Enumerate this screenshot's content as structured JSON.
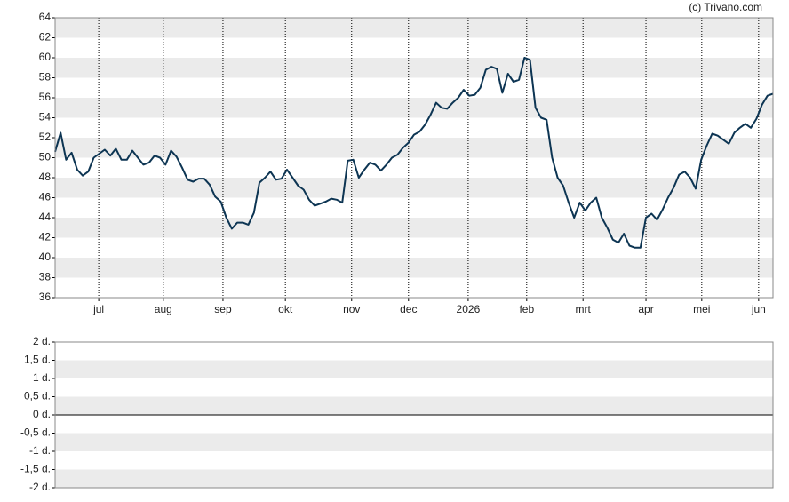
{
  "attribution": "(c) Trivano.com",
  "chart_data": [
    {
      "type": "line",
      "ylim": [
        36,
        64
      ],
      "yticks": [
        36,
        38,
        40,
        42,
        44,
        46,
        48,
        50,
        52,
        54,
        56,
        58,
        60,
        62,
        64
      ],
      "xlim": [
        0,
        130
      ],
      "xticks": [
        {
          "value": 7.9,
          "label": "jul"
        },
        {
          "value": 19.6,
          "label": "aug"
        },
        {
          "value": 30.4,
          "label": "sep"
        },
        {
          "value": 41.7,
          "label": "okt"
        },
        {
          "value": 53.7,
          "label": "nov"
        },
        {
          "value": 64.0,
          "label": "dec"
        },
        {
          "value": 74.8,
          "label": "2026"
        },
        {
          "value": 85.4,
          "label": "feb"
        },
        {
          "value": 95.6,
          "label": "mrt"
        },
        {
          "value": 107.0,
          "label": "apr"
        },
        {
          "value": 117.1,
          "label": "mei"
        },
        {
          "value": 127.4,
          "label": "jun"
        }
      ],
      "grid": true,
      "series": [
        {
          "color": "#0d3553",
          "values": [
            50.6,
            52.5,
            49.8,
            50.5,
            48.8,
            48.2,
            48.6,
            50.0,
            50.4,
            50.8,
            50.2,
            50.9,
            49.8,
            49.8,
            50.7,
            50.0,
            49.3,
            49.5,
            50.2,
            50.0,
            49.3,
            50.7,
            50.1,
            49.0,
            47.8,
            47.6,
            47.9,
            47.9,
            47.3,
            46.1,
            45.6,
            44.0,
            42.9,
            43.5,
            43.5,
            43.3,
            44.5,
            47.5,
            48.0,
            48.6,
            47.8,
            47.9,
            48.8,
            48.0,
            47.2,
            46.8,
            45.8,
            45.2,
            45.4,
            45.6,
            45.9,
            45.8,
            45.5,
            49.7,
            49.8,
            48.0,
            48.8,
            49.5,
            49.3,
            48.7,
            49.3,
            50.0,
            50.3,
            51.0,
            51.5,
            52.3,
            52.6,
            53.3,
            54.3,
            55.5,
            55.0,
            54.9,
            55.5,
            56.0,
            56.8,
            56.2,
            56.3,
            57.0,
            58.8,
            59.1,
            58.9,
            56.5,
            58.4,
            57.6,
            57.8,
            60.0,
            59.8,
            55.0,
            54.0,
            53.8,
            50.0,
            48.0,
            47.2,
            45.5,
            44.0,
            45.5,
            44.7,
            45.5,
            46.0,
            44.0,
            43.0,
            41.8,
            41.5,
            42.4,
            41.2,
            41.0,
            41.0,
            44.0,
            44.4,
            43.8,
            44.8,
            46.0,
            47.0,
            48.3,
            48.6,
            48.0,
            46.9,
            49.8,
            51.2,
            52.4,
            52.2,
            51.8,
            51.4,
            52.5,
            53.0,
            53.4,
            53.0,
            53.9,
            55.3,
            56.2,
            56.4
          ]
        }
      ]
    },
    {
      "type": "line",
      "ylim": [
        -2,
        2
      ],
      "yticks": [
        {
          "value": -2,
          "label": "-2 d."
        },
        {
          "value": -1.5,
          "label": "-1,5 d."
        },
        {
          "value": -1,
          "label": "-1 d."
        },
        {
          "value": -0.5,
          "label": "-0,5 d."
        },
        {
          "value": 0,
          "label": "0 d."
        },
        {
          "value": 0.5,
          "label": "0,5 d."
        },
        {
          "value": 1,
          "label": "1 d."
        },
        {
          "value": 1.5,
          "label": "1,5 d."
        },
        {
          "value": 2,
          "label": "2 d."
        }
      ],
      "grid": true
    }
  ]
}
